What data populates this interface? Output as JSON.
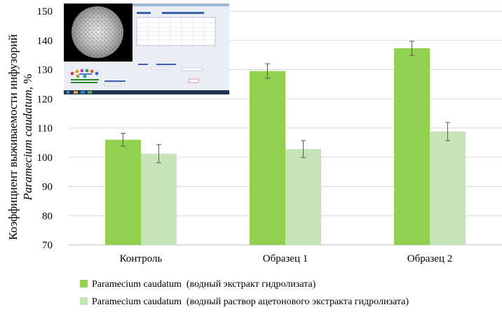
{
  "chart_data": {
    "type": "bar",
    "categories": [
      "Контроль",
      "Образец 1",
      "Образец 2"
    ],
    "series": [
      {
        "name": "Paramecium caudatum  (водный экстракт гидролизата)",
        "values": [
          106,
          129.5,
          137.3
        ],
        "errors": [
          2.2,
          2.5,
          2.4
        ],
        "color": "#92d050"
      },
      {
        "name": "Paramecium caudatum  (водный раствор ацетонового экстракта гидролизата)",
        "values": [
          101.2,
          102.8,
          108.8
        ],
        "errors": [
          3.1,
          2.9,
          3.1
        ],
        "color": "#c6e4b5"
      }
    ],
    "ylabel_line1": "Коэффициент выживаемости инфузорий",
    "ylabel_line2_italic": "Paramecium caudatum",
    "ylabel_line2_suffix": ", %",
    "ylim": [
      70,
      150
    ],
    "yticks": [
      70,
      80,
      90,
      100,
      110,
      120,
      130,
      140,
      150
    ],
    "grid": true,
    "legend_position": "bottom"
  },
  "colors": {
    "grid": "#d9d9d9",
    "axis": "#bfbfbf",
    "error_bar": "#595959"
  }
}
